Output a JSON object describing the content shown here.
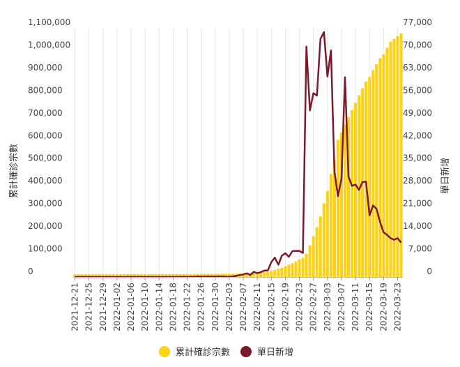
{
  "chart_data": {
    "type": "bar+line",
    "title": "",
    "categories": [
      "2021-12-21",
      "2021-12-22",
      "2021-12-23",
      "2021-12-24",
      "2021-12-25",
      "2021-12-26",
      "2021-12-27",
      "2021-12-28",
      "2021-12-29",
      "2021-12-30",
      "2021-12-31",
      "2022-01-01",
      "2022-01-02",
      "2022-01-03",
      "2022-01-04",
      "2022-01-05",
      "2022-01-06",
      "2022-01-07",
      "2022-01-08",
      "2022-01-09",
      "2022-01-10",
      "2022-01-11",
      "2022-01-12",
      "2022-01-13",
      "2022-01-14",
      "2022-01-15",
      "2022-01-16",
      "2022-01-17",
      "2022-01-18",
      "2022-01-19",
      "2022-01-20",
      "2022-01-21",
      "2022-01-22",
      "2022-01-23",
      "2022-01-24",
      "2022-01-25",
      "2022-01-26",
      "2022-01-27",
      "2022-01-28",
      "2022-01-29",
      "2022-01-30",
      "2022-01-31",
      "2022-02-01",
      "2022-02-02",
      "2022-02-03",
      "2022-02-04",
      "2022-02-05",
      "2022-02-06",
      "2022-02-07",
      "2022-02-08",
      "2022-02-09",
      "2022-02-10",
      "2022-02-11",
      "2022-02-12",
      "2022-02-13",
      "2022-02-14",
      "2022-02-15",
      "2022-02-16",
      "2022-02-17",
      "2022-02-18",
      "2022-02-19",
      "2022-02-20",
      "2022-02-21",
      "2022-02-22",
      "2022-02-23",
      "2022-02-24",
      "2022-02-25",
      "2022-02-26",
      "2022-02-27",
      "2022-02-28",
      "2022-03-01",
      "2022-03-02",
      "2022-03-03",
      "2022-03-04",
      "2022-03-05",
      "2022-03-06",
      "2022-03-07",
      "2022-03-08",
      "2022-03-09",
      "2022-03-10",
      "2022-03-11",
      "2022-03-12",
      "2022-03-13",
      "2022-03-14",
      "2022-03-15",
      "2022-03-16",
      "2022-03-17",
      "2022-03-18",
      "2022-03-19",
      "2022-03-20",
      "2022-03-21",
      "2022-03-22",
      "2022-03-23",
      "2022-03-24"
    ],
    "x_tick_labels": [
      "2021-12-21",
      "2021-12-25",
      "2021-12-29",
      "2022-01-02",
      "2022-01-06",
      "2022-01-10",
      "2022-01-14",
      "2022-01-18",
      "2022-01-22",
      "2022-01-26",
      "2022-01-30",
      "2022-02-03",
      "2022-02-07",
      "2022-02-11",
      "2022-02-15",
      "2022-02-19",
      "2022-02-23",
      "2022-02-27",
      "2022-03-03",
      "2022-03-07",
      "2022-03-11",
      "2022-03-15",
      "2022-03-19",
      "2022-03-23"
    ],
    "series": [
      {
        "name": "累計確診宗數",
        "type": "bar",
        "axis": "left",
        "color": "#fcd116",
        "values": [
          12636,
          12644,
          12649,
          12656,
          12662,
          12667,
          12675,
          12681,
          12688,
          12693,
          12699,
          12707,
          12712,
          12718,
          12730,
          12744,
          12761,
          12779,
          12795,
          12810,
          12821,
          12833,
          12845,
          12861,
          12874,
          12893,
          12902,
          12917,
          12934,
          12957,
          12984,
          13020,
          13072,
          13111,
          13168,
          13232,
          13397,
          13505,
          13614,
          13753,
          13882,
          14026,
          14188,
          14323,
          14414,
          14513,
          14702,
          15060,
          15668,
          16434,
          17553,
          18186,
          19783,
          20968,
          22467,
          24473,
          26514,
          31099,
          37093,
          40893,
          47486,
          54813,
          61072,
          69052,
          77134,
          85196,
          103031,
          140231,
          180727,
          219935,
          267297,
          325289,
          379264,
          455196,
          515926,
          606256,
          637736,
          672738,
          704733,
          736961,
          769005,
          802251,
          834036,
          862917,
          884036,
          914007,
          939587,
          966018,
          982888,
          1012452,
          1038612,
          1051618,
          1063726,
          1076226
        ]
      },
      {
        "name": "單日新增",
        "type": "line",
        "axis": "right",
        "color": "#7b1a2a",
        "values": [
          8,
          5,
          7,
          6,
          5,
          8,
          6,
          7,
          5,
          6,
          8,
          5,
          6,
          12,
          14,
          17,
          18,
          16,
          15,
          11,
          12,
          12,
          16,
          13,
          19,
          9,
          15,
          17,
          23,
          27,
          36,
          52,
          39,
          57,
          64,
          165,
          108,
          109,
          139,
          129,
          144,
          162,
          135,
          91,
          99,
          189,
          358,
          608,
          766,
          1119,
          633,
          1597,
          1185,
          1499,
          2006,
          2041,
          4585,
          5994,
          3800,
          6593,
          7327,
          6259,
          7980,
          8082,
          8062,
          7434,
          71210,
          51503,
          56827,
          56104,
          73597,
          75700,
          61987,
          70032,
          32597,
          24999,
          30340,
          61750,
          31008,
          28175,
          28550,
          26919,
          29381,
          29421,
          19080,
          22124,
          21051,
          17010,
          13820,
          13020,
          12000,
          11505,
          12000,
          10637
        ]
      }
    ],
    "left_axis": {
      "label": "累計確診宗數",
      "ylim": [
        0,
        1100000
      ],
      "ticks": [
        0,
        100000,
        200000,
        300000,
        400000,
        500000,
        600000,
        700000,
        800000,
        900000,
        1000000,
        1100000
      ],
      "tick_labels": [
        "0",
        "100,000",
        "200,000",
        "300,000",
        "400,000",
        "500,000",
        "600,000",
        "700,000",
        "800,000",
        "900,000",
        "1,000,000",
        "1,100,000"
      ]
    },
    "right_axis": {
      "label": "單日新增",
      "ylim": [
        0,
        77000
      ],
      "ticks": [
        0,
        7000,
        14000,
        21000,
        28000,
        35000,
        42000,
        49000,
        56000,
        63000,
        70000,
        77000
      ],
      "tick_labels": [
        "0",
        "7,000",
        "14,000",
        "21,000",
        "28,000",
        "35,000",
        "42,000",
        "49,000",
        "56,000",
        "63,000",
        "70,000",
        "77,000"
      ]
    },
    "grid": "vertical",
    "legend": {
      "position": "bottom-center"
    }
  }
}
